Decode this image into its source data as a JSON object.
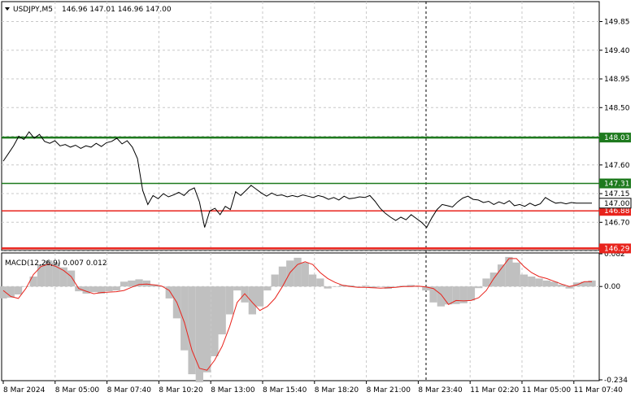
{
  "header": {
    "symbol": "USDJPY,M5",
    "ohlc": "146.96 147.01 146.96 147.00"
  },
  "chart_data": [
    {
      "type": "line",
      "name": "price",
      "ylim": [
        146.27,
        150.15
      ],
      "yticks": [
        "149.85",
        "149.40",
        "148.95",
        "148.50",
        "148.05",
        "147.60",
        "147.15",
        "146.70",
        "146.25"
      ],
      "ytick_values": [
        149.85,
        149.4,
        148.95,
        148.5,
        148.05,
        147.6,
        147.15,
        146.7,
        146.25
      ],
      "levels": [
        {
          "value": 148.03,
          "label": "148.03",
          "color": "#1e7a1e",
          "style": "thick"
        },
        {
          "value": 147.31,
          "label": "147.31",
          "color": "#1e7a1e",
          "style": "thin"
        },
        {
          "value": 146.88,
          "label": "146.88",
          "color": "#e8231c",
          "style": "thin"
        },
        {
          "value": 146.29,
          "label": "146.29",
          "color": "#e8231c",
          "style": "thick"
        }
      ],
      "current": {
        "value": 147.0,
        "label": "147.00"
      },
      "series": [
        {
          "x": [
            0,
            0.5,
            1,
            1.5,
            2,
            2.5,
            3,
            3.5,
            4,
            4.5,
            5,
            5.5,
            6,
            6.5,
            7,
            7.5,
            8,
            8.5,
            9,
            9.5,
            10,
            10.5,
            11,
            11.5,
            12,
            12.5,
            13,
            13.5,
            14,
            14.5,
            15,
            15.5,
            16,
            16.5,
            17,
            17.5,
            18,
            18.5,
            19,
            19.5,
            20,
            20.5,
            21,
            21.5,
            22,
            22.5,
            23,
            23.5,
            24,
            24.5,
            25,
            25.5,
            26,
            26.5,
            27,
            27.5,
            28,
            28.5,
            29,
            29.5,
            30,
            30.5,
            31,
            31.5,
            32,
            32.5,
            33,
            33.5,
            34,
            34.5,
            35,
            35.5,
            36,
            36.5,
            37,
            37.5,
            38,
            38.5,
            39,
            39.5,
            40,
            40.5,
            41,
            41.5,
            42,
            42.5,
            43,
            43.5,
            44,
            44.5,
            45,
            45.5,
            46,
            46.5,
            47,
            47.5,
            48,
            48.5,
            49,
            49.5,
            50,
            50.5,
            51,
            51.5,
            52,
            52.5,
            53,
            53.5,
            54,
            54.5,
            55,
            55.5,
            56,
            56.5,
            57
          ],
          "values": [
            147.66,
            147.78,
            147.9,
            148.05,
            148.0,
            148.12,
            148.02,
            148.08,
            147.97,
            147.94,
            147.98,
            147.9,
            147.92,
            147.88,
            147.91,
            147.86,
            147.9,
            147.88,
            147.94,
            147.89,
            147.95,
            147.97,
            148.02,
            147.93,
            147.98,
            147.88,
            147.7,
            147.2,
            146.98,
            147.12,
            147.07,
            147.15,
            147.1,
            147.13,
            147.17,
            147.12,
            147.2,
            147.24,
            147.02,
            146.62,
            146.88,
            146.92,
            146.82,
            146.95,
            146.9,
            147.18,
            147.12,
            147.2,
            147.28,
            147.22,
            147.16,
            147.11,
            147.16,
            147.12,
            147.13,
            147.1,
            147.12,
            147.1,
            147.13,
            147.11,
            147.09,
            147.12,
            147.1,
            147.06,
            147.09,
            147.05,
            147.11,
            147.07,
            147.08,
            147.1,
            147.09,
            147.12,
            147.03,
            146.92,
            146.84,
            146.78,
            146.73,
            146.78,
            146.74,
            146.82,
            146.76,
            146.7,
            146.62,
            146.77,
            146.9,
            146.98,
            146.96,
            146.94,
            147.02,
            147.08,
            147.11,
            147.06,
            147.05,
            147.01,
            147.03,
            146.98,
            147.02,
            146.99,
            147.04,
            146.96,
            146.98,
            146.95,
            147.0,
            146.96,
            146.99,
            147.09,
            147.04,
            147.0,
            147.01,
            146.99,
            147.01,
            147.0,
            147.0,
            147.0,
            147.0
          ]
        }
      ]
    },
    {
      "type": "bar+line",
      "name": "macd",
      "title": "MACD(12,26,9) 0.007 0.012",
      "ylim": [
        -0.234,
        0.082
      ],
      "yticks": [
        "0.082",
        "0.00",
        "-0.234"
      ],
      "ytick_values": [
        0.082,
        0.0,
        -0.234
      ],
      "histogram": [
        -0.03,
        -0.028,
        -0.02,
        0.0,
        0.025,
        0.055,
        0.065,
        0.06,
        0.048,
        0.04,
        -0.012,
        -0.018,
        -0.014,
        -0.018,
        -0.012,
        -0.01,
        0.012,
        0.015,
        0.018,
        0.015,
        0.005,
        0.0,
        -0.03,
        -0.08,
        -0.16,
        -0.22,
        -0.24,
        -0.215,
        -0.175,
        -0.12,
        -0.07,
        -0.01,
        -0.04,
        -0.07,
        -0.05,
        -0.01,
        0.03,
        0.05,
        0.065,
        0.072,
        0.06,
        0.03,
        0.02,
        -0.005,
        0.0,
        0.004,
        0.003,
        0.0,
        0.002,
        -0.004,
        0.0,
        -0.006,
        -0.001,
        0.002,
        0.004,
        0.0,
        -0.01,
        -0.04,
        -0.05,
        -0.045,
        -0.044,
        -0.042,
        -0.035,
        -0.004,
        0.02,
        0.035,
        0.055,
        0.074,
        0.06,
        0.03,
        0.025,
        0.02,
        0.015,
        0.012,
        0.005,
        -0.005,
        0.01,
        0.012,
        0.015
      ],
      "signal": [
        -0.01,
        -0.025,
        -0.03,
        -0.005,
        0.03,
        0.05,
        0.056,
        0.05,
        0.04,
        0.025,
        -0.005,
        -0.012,
        -0.018,
        -0.015,
        -0.014,
        -0.013,
        -0.01,
        -0.002,
        0.005,
        0.006,
        0.004,
        0.001,
        -0.01,
        -0.04,
        -0.09,
        -0.16,
        -0.205,
        -0.21,
        -0.185,
        -0.15,
        -0.1,
        -0.04,
        -0.018,
        -0.04,
        -0.06,
        -0.05,
        -0.03,
        0.0,
        0.035,
        0.055,
        0.062,
        0.055,
        0.035,
        0.02,
        0.01,
        0.003,
        0.0,
        -0.002,
        -0.002,
        -0.003,
        -0.004,
        -0.003,
        -0.002,
        0.0,
        0.0,
        0.001,
        -0.001,
        -0.005,
        -0.02,
        -0.045,
        -0.035,
        -0.036,
        -0.035,
        -0.028,
        -0.01,
        0.02,
        0.045,
        0.07,
        0.07,
        0.05,
        0.035,
        0.025,
        0.02,
        0.013,
        0.006,
        0.0,
        0.004,
        0.012,
        0.012
      ]
    }
  ],
  "xaxis": {
    "labels": [
      "8 Mar 2024",
      "8 Mar 05:00",
      "8 Mar 07:40",
      "8 Mar 10:20",
      "8 Mar 13:00",
      "8 Mar 15:40",
      "8 Mar 18:20",
      "8 Mar 21:00",
      "8 Mar 23:40",
      "11 Mar 02:20",
      "11 Mar 05:00",
      "11 Mar 07:40"
    ]
  },
  "colors": {
    "price_line": "#000000",
    "histogram": "#c0c0c0",
    "signal": "#e8231c",
    "green_level": "#1e7a1e",
    "red_level": "#e8231c"
  }
}
